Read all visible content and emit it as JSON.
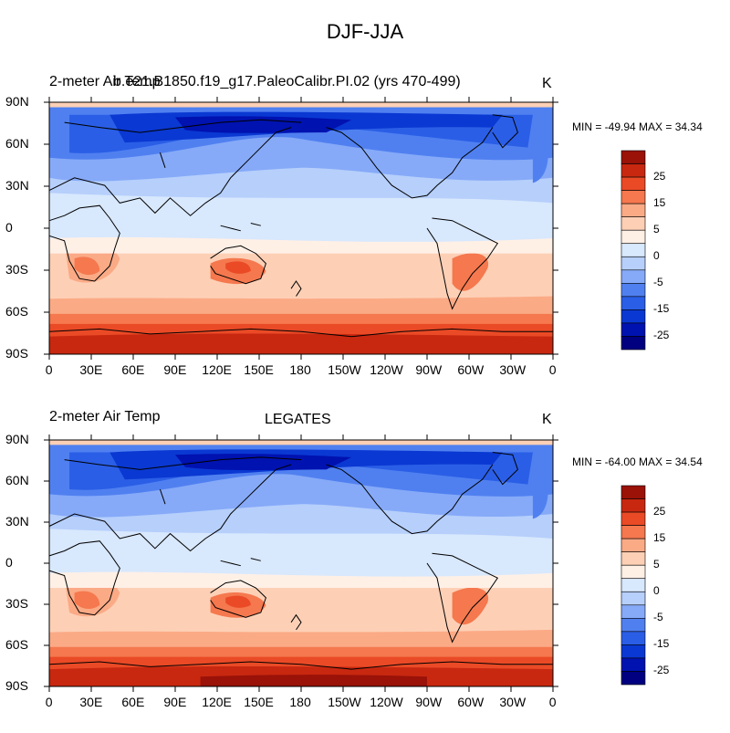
{
  "title": "DJF-JJA",
  "colors": {
    "levels": [
      "#000080",
      "#0012b0",
      "#0a38d2",
      "#2a5ee6",
      "#5080f0",
      "#86aaf8",
      "#b6cffb",
      "#d8e8fd",
      "#fff0e6",
      "#fdd0b6",
      "#fbaa86",
      "#f5784e",
      "#ea4a26",
      "#c82810",
      "#9a1208"
    ],
    "coast": "#000000"
  },
  "panels": [
    {
      "left_label": "2-meter Air Temp",
      "center_label": "b.e21.B1850.f19_g17.PaleoCalibr.PI.02 (yrs 470-499)",
      "units": "K",
      "stats": "MIN = -49.94 MAX =  34.34",
      "y_ticks": [
        "90N",
        "60N",
        "30N",
        "0",
        "30S",
        "60S",
        "90S"
      ],
      "x_ticks": [
        "0",
        "30E",
        "60E",
        "90E",
        "120E",
        "150E",
        "180",
        "150W",
        "120W",
        "90W",
        "60W",
        "30W",
        "0"
      ],
      "colorbar_labels": [
        "25",
        "15",
        "5",
        "0",
        "-5",
        "-15",
        "-25"
      ]
    },
    {
      "left_label": "2-meter Air Temp",
      "center_label": "LEGATES",
      "units": "K",
      "stats": "MIN = -64.00 MAX =  34.54",
      "y_ticks": [
        "90N",
        "60N",
        "30N",
        "0",
        "30S",
        "60S",
        "90S"
      ],
      "x_ticks": [
        "0",
        "30E",
        "60E",
        "90E",
        "120E",
        "150E",
        "180",
        "150W",
        "120W",
        "90W",
        "60W",
        "30W",
        "0"
      ],
      "colorbar_labels": [
        "25",
        "15",
        "5",
        "0",
        "-5",
        "-15",
        "-25"
      ]
    }
  ]
}
